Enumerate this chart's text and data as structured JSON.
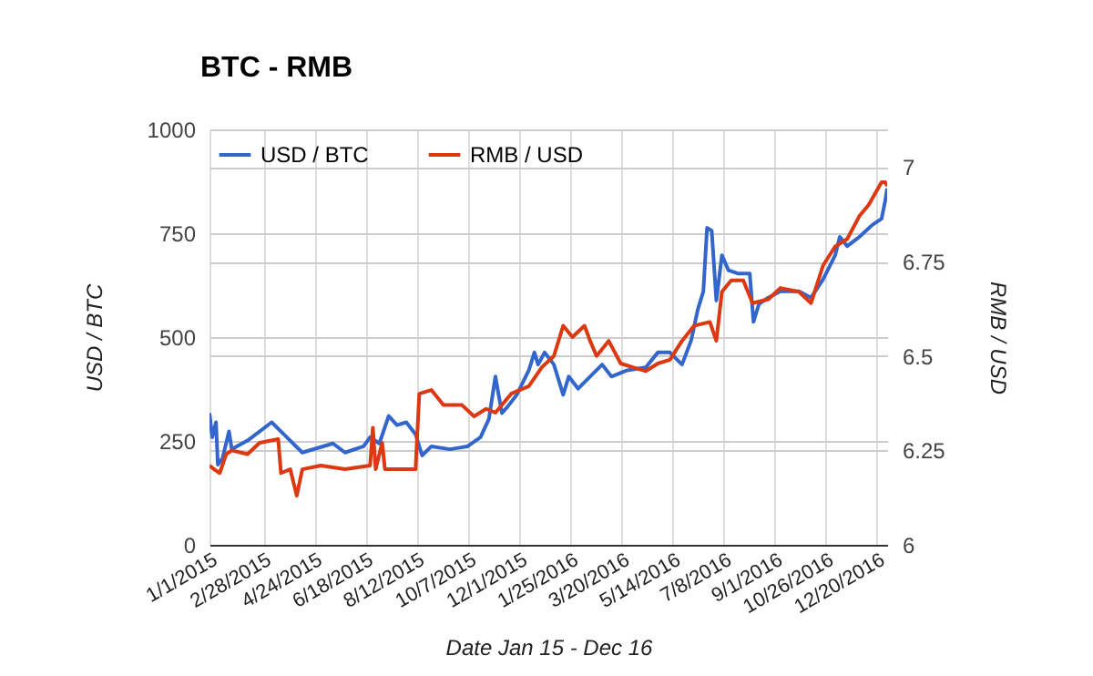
{
  "chart_data": {
    "type": "line",
    "title": "BTC - RMB",
    "xlabel": "Date Jan 15 - Dec 16",
    "ylabel": "USD / BTC",
    "y2label": "RMB / USD",
    "legend": "top left",
    "grid": true,
    "xlim": [
      "2015-01-01",
      "2016-12-31"
    ],
    "xticks": [
      {
        "value": "2015-01-01",
        "label": "1/1/2015"
      },
      {
        "value": "2015-02-28",
        "label": "2/28/2015"
      },
      {
        "value": "2015-04-24",
        "label": "4/24/2015"
      },
      {
        "value": "2015-06-18",
        "label": "6/18/2015"
      },
      {
        "value": "2015-08-12",
        "label": "8/12/2015"
      },
      {
        "value": "2015-10-07",
        "label": "10/7/2015"
      },
      {
        "value": "2015-12-01",
        "label": "12/1/2015"
      },
      {
        "value": "2016-01-25",
        "label": "1/25/2016"
      },
      {
        "value": "2016-03-20",
        "label": "3/20/2016"
      },
      {
        "value": "2016-05-14",
        "label": "5/14/2016"
      },
      {
        "value": "2016-07-08",
        "label": "7/8/2016"
      },
      {
        "value": "2016-09-01",
        "label": "9/1/2016"
      },
      {
        "value": "2016-10-26",
        "label": "10/26/2016"
      },
      {
        "value": "2016-12-20",
        "label": "12/20/2016"
      }
    ],
    "ylim": [
      0,
      1000
    ],
    "yticks": [
      0,
      250,
      500,
      750,
      1000
    ],
    "y2lim": [
      6,
      7.1
    ],
    "y2ticks": [
      6,
      6.25,
      6.5,
      6.75,
      7
    ],
    "series": [
      {
        "name": "USD / BTC",
        "color": "#3366cc",
        "x": [
          "2015-01-01",
          "2015-01-04",
          "2015-01-08",
          "2015-01-10",
          "2015-01-15",
          "2015-01-22",
          "2015-01-25",
          "2015-02-11",
          "2015-03-09",
          "2015-03-22",
          "2015-04-11",
          "2015-05-14",
          "2015-05-27",
          "2015-06-16",
          "2015-06-23",
          "2015-07-03",
          "2015-07-13",
          "2015-07-22",
          "2015-08-01",
          "2015-08-11",
          "2015-08-18",
          "2015-08-28",
          "2015-09-17",
          "2015-10-06",
          "2015-10-20",
          "2015-10-29",
          "2015-11-05",
          "2015-11-12",
          "2015-11-18",
          "2015-11-28",
          "2015-12-11",
          "2015-12-17",
          "2015-12-21",
          "2015-12-28",
          "2016-01-07",
          "2016-01-17",
          "2016-01-23",
          "2016-02-02",
          "2016-02-15",
          "2016-02-28",
          "2016-03-09",
          "2016-03-26",
          "2016-04-15",
          "2016-04-28",
          "2016-05-11",
          "2016-05-24",
          "2016-06-03",
          "2016-06-10",
          "2016-06-16",
          "2016-06-20",
          "2016-06-25",
          "2016-06-30",
          "2016-07-06",
          "2016-07-13",
          "2016-07-23",
          "2016-08-05",
          "2016-08-09",
          "2016-08-15",
          "2016-08-25",
          "2016-09-07",
          "2016-09-27",
          "2016-10-10",
          "2016-10-23",
          "2016-11-05",
          "2016-11-10",
          "2016-11-18",
          "2016-12-01",
          "2016-12-15",
          "2016-12-25",
          "2016-12-29",
          "2016-12-31"
        ],
        "values": [
          317,
          259,
          295,
          193,
          208,
          273,
          230,
          251,
          295,
          266,
          222,
          244,
          222,
          237,
          259,
          244,
          310,
          288,
          295,
          266,
          215,
          237,
          230,
          237,
          259,
          303,
          405,
          317,
          332,
          361,
          420,
          463,
          434,
          463,
          434,
          361,
          405,
          376,
          405,
          434,
          405,
          420,
          427,
          463,
          463,
          434,
          493,
          566,
          610,
          763,
          756,
          588,
          697,
          661,
          653,
          653,
          537,
          580,
          595,
          610,
          610,
          595,
          639,
          697,
          741,
          719,
          741,
          770,
          785,
          829,
          858
        ]
      },
      {
        "name": "RMB / USD",
        "color": "#dc3912",
        "axis": "y2",
        "x": [
          "2015-01-01",
          "2015-01-06",
          "2015-01-12",
          "2015-01-19",
          "2015-01-25",
          "2015-02-11",
          "2015-02-24",
          "2015-03-16",
          "2015-03-19",
          "2015-03-29",
          "2015-04-05",
          "2015-04-11",
          "2015-05-01",
          "2015-05-27",
          "2015-06-23",
          "2015-06-26",
          "2015-06-29",
          "2015-07-06",
          "2015-07-09",
          "2015-08-01",
          "2015-08-11",
          "2015-08-15",
          "2015-08-28",
          "2015-09-10",
          "2015-09-30",
          "2015-10-13",
          "2015-10-26",
          "2015-11-05",
          "2015-11-22",
          "2015-12-11",
          "2015-12-25",
          "2016-01-07",
          "2016-01-17",
          "2016-01-27",
          "2016-02-09",
          "2016-02-15",
          "2016-02-22",
          "2016-03-06",
          "2016-03-19",
          "2016-04-01",
          "2016-04-15",
          "2016-04-28",
          "2016-05-11",
          "2016-05-24",
          "2016-06-06",
          "2016-06-23",
          "2016-06-30",
          "2016-07-06",
          "2016-07-16",
          "2016-07-29",
          "2016-08-08",
          "2016-08-25",
          "2016-09-07",
          "2016-09-27",
          "2016-10-10",
          "2016-10-23",
          "2016-11-05",
          "2016-11-18",
          "2016-12-01",
          "2016-12-11",
          "2016-12-18",
          "2016-12-25",
          "2016-12-29",
          "2016-12-31"
        ],
        "values": [
          6.21,
          6.2,
          6.19,
          6.24,
          6.25,
          6.24,
          6.27,
          6.28,
          6.19,
          6.2,
          6.13,
          6.2,
          6.21,
          6.2,
          6.21,
          6.31,
          6.2,
          6.27,
          6.2,
          6.2,
          6.2,
          6.4,
          6.41,
          6.37,
          6.37,
          6.34,
          6.36,
          6.35,
          6.4,
          6.42,
          6.47,
          6.5,
          6.58,
          6.55,
          6.58,
          6.54,
          6.5,
          6.54,
          6.48,
          6.47,
          6.46,
          6.48,
          6.49,
          6.54,
          6.58,
          6.59,
          6.54,
          6.67,
          6.7,
          6.7,
          6.64,
          6.65,
          6.68,
          6.67,
          6.64,
          6.74,
          6.79,
          6.81,
          6.87,
          6.9,
          6.93,
          6.96,
          6.96,
          6.95
        ]
      }
    ]
  }
}
